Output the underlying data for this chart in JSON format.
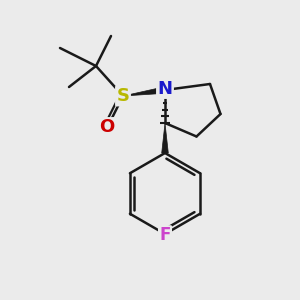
{
  "bg_color": "#ebebeb",
  "bond_color": "#1a1a1a",
  "N_color": "#1a1acc",
  "S_color": "#b8b800",
  "O_color": "#cc0000",
  "F_color": "#cc44cc",
  "line_width": 1.8,
  "font_size_atom": 12,
  "fig_size": [
    3.0,
    3.0
  ],
  "dpi": 100,
  "xlim": [
    0,
    10
  ],
  "ylim": [
    0,
    10
  ]
}
